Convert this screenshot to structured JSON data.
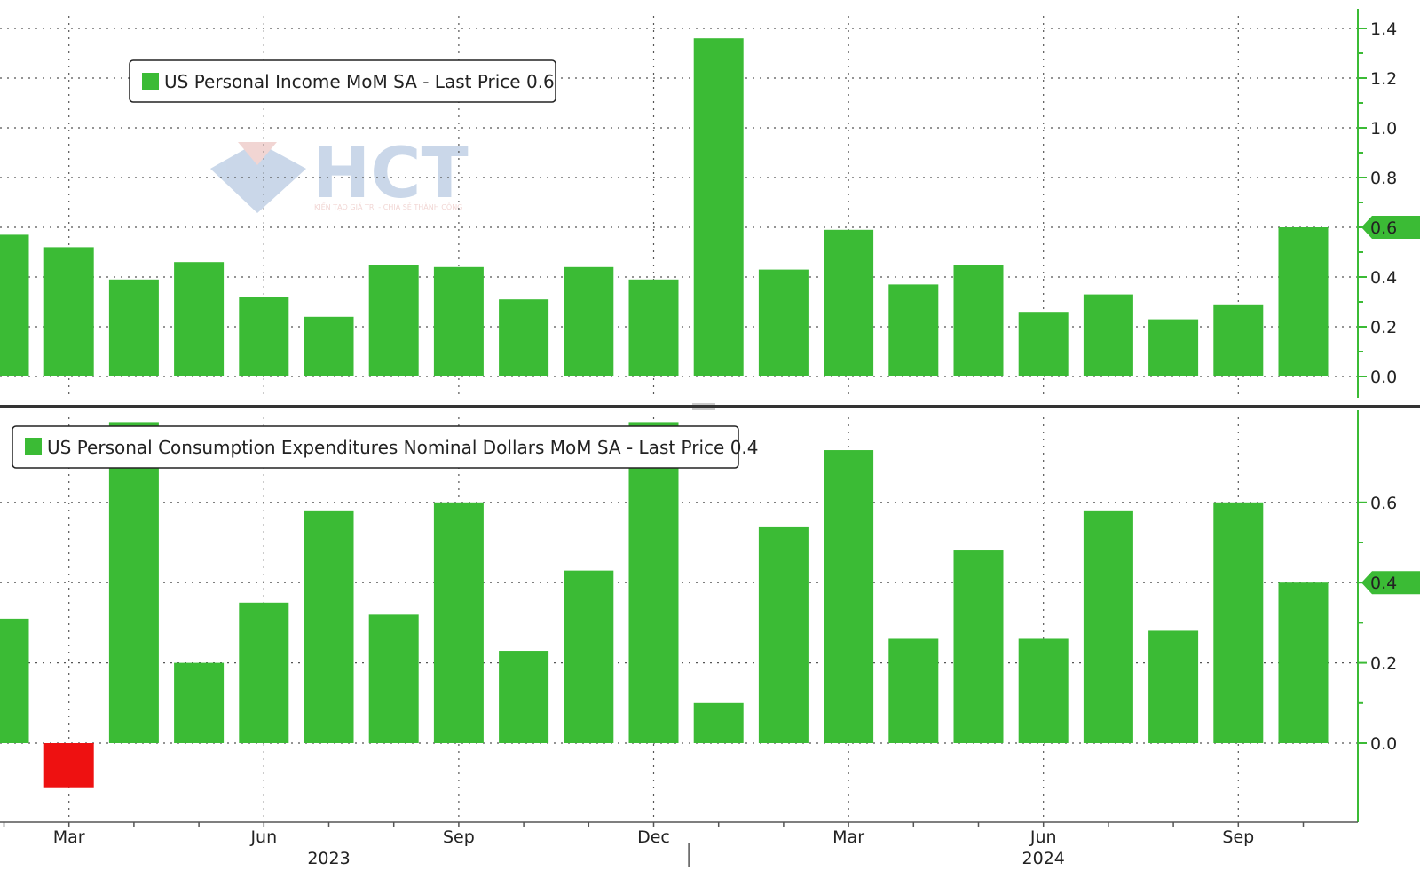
{
  "colors": {
    "background": "#ffffff",
    "bar_positive": "#3bbb35",
    "bar_negative": "#ee1111",
    "grid": "#555555",
    "axis": "#3bbb35",
    "divider": "#333333",
    "label_text": "#222222",
    "watermark_blue": "#9fb8d8",
    "watermark_red": "#e6b4b0"
  },
  "watermark": {
    "text": "HCT",
    "tagline": "KIẾN TẠO GIÁ TRỊ - CHIA SẺ THÀNH CÔNG"
  },
  "x_axis": {
    "month_ticks": [
      {
        "index": 1,
        "label": "Mar"
      },
      {
        "index": 4,
        "label": "Jun"
      },
      {
        "index": 7,
        "label": "Sep"
      },
      {
        "index": 10,
        "label": "Dec"
      },
      {
        "index": 13,
        "label": "Mar"
      },
      {
        "index": 16,
        "label": "Jun"
      },
      {
        "index": 19,
        "label": "Sep"
      }
    ],
    "years": [
      {
        "index": 5,
        "label": "2023"
      },
      {
        "index": 16,
        "label": "2024"
      }
    ]
  },
  "chart_data": [
    {
      "type": "bar",
      "legend": "US Personal Income MoM SA - Last Price 0.6",
      "last_price_label": "0.6",
      "last_price_value": 0.6,
      "categories": [
        "Feb 2023",
        "Mar 2023",
        "Apr 2023",
        "May 2023",
        "Jun 2023",
        "Jul 2023",
        "Aug 2023",
        "Sep 2023",
        "Oct 2023",
        "Nov 2023",
        "Dec 2023",
        "Jan 2024",
        "Feb 2024",
        "Mar 2024",
        "Apr 2024",
        "May 2024",
        "Jun 2024",
        "Jul 2024",
        "Aug 2024",
        "Sep 2024",
        "Oct 2024"
      ],
      "values": [
        0.57,
        0.52,
        0.39,
        0.46,
        0.32,
        0.24,
        0.45,
        0.44,
        0.31,
        0.44,
        0.39,
        1.36,
        0.43,
        0.59,
        0.37,
        0.45,
        0.26,
        0.33,
        0.23,
        0.29,
        0.6
      ],
      "ylim": [
        -0.11,
        1.5
      ],
      "yticks": [
        0.0,
        0.2,
        0.4,
        0.6,
        0.8,
        1.0,
        1.2,
        1.4
      ],
      "ytick_labels": [
        "0.0",
        "0.2",
        "0.4",
        "0.6",
        "0.8",
        "1.0",
        "1.2",
        "1.4"
      ],
      "grid": true,
      "legend_position": "top-left"
    },
    {
      "type": "bar",
      "legend": "US Personal Consumption Expenditures Nominal Dollars MoM SA - Last Price 0.4",
      "last_price_label": "0.4",
      "last_price_value": 0.4,
      "categories": [
        "Feb 2023",
        "Mar 2023",
        "Apr 2023",
        "May 2023",
        "Jun 2023",
        "Jul 2023",
        "Aug 2023",
        "Sep 2023",
        "Oct 2023",
        "Nov 2023",
        "Dec 2023",
        "Jan 2024",
        "Feb 2024",
        "Mar 2024",
        "Apr 2024",
        "May 2024",
        "Jun 2024",
        "Jul 2024",
        "Aug 2024",
        "Sep 2024",
        "Oct 2024"
      ],
      "values": [
        0.31,
        -0.11,
        0.8,
        0.2,
        0.35,
        0.58,
        0.32,
        0.6,
        0.23,
        0.43,
        0.8,
        0.1,
        0.54,
        0.73,
        0.26,
        0.48,
        0.26,
        0.58,
        0.28,
        0.6,
        0.4
      ],
      "ylim": [
        -0.2,
        0.8
      ],
      "yticks": [
        0.0,
        0.2,
        0.4,
        0.6
      ],
      "ytick_labels": [
        "0.0",
        "0.2",
        "0.4",
        "0.6"
      ],
      "grid": true,
      "legend_position": "top-left"
    }
  ]
}
